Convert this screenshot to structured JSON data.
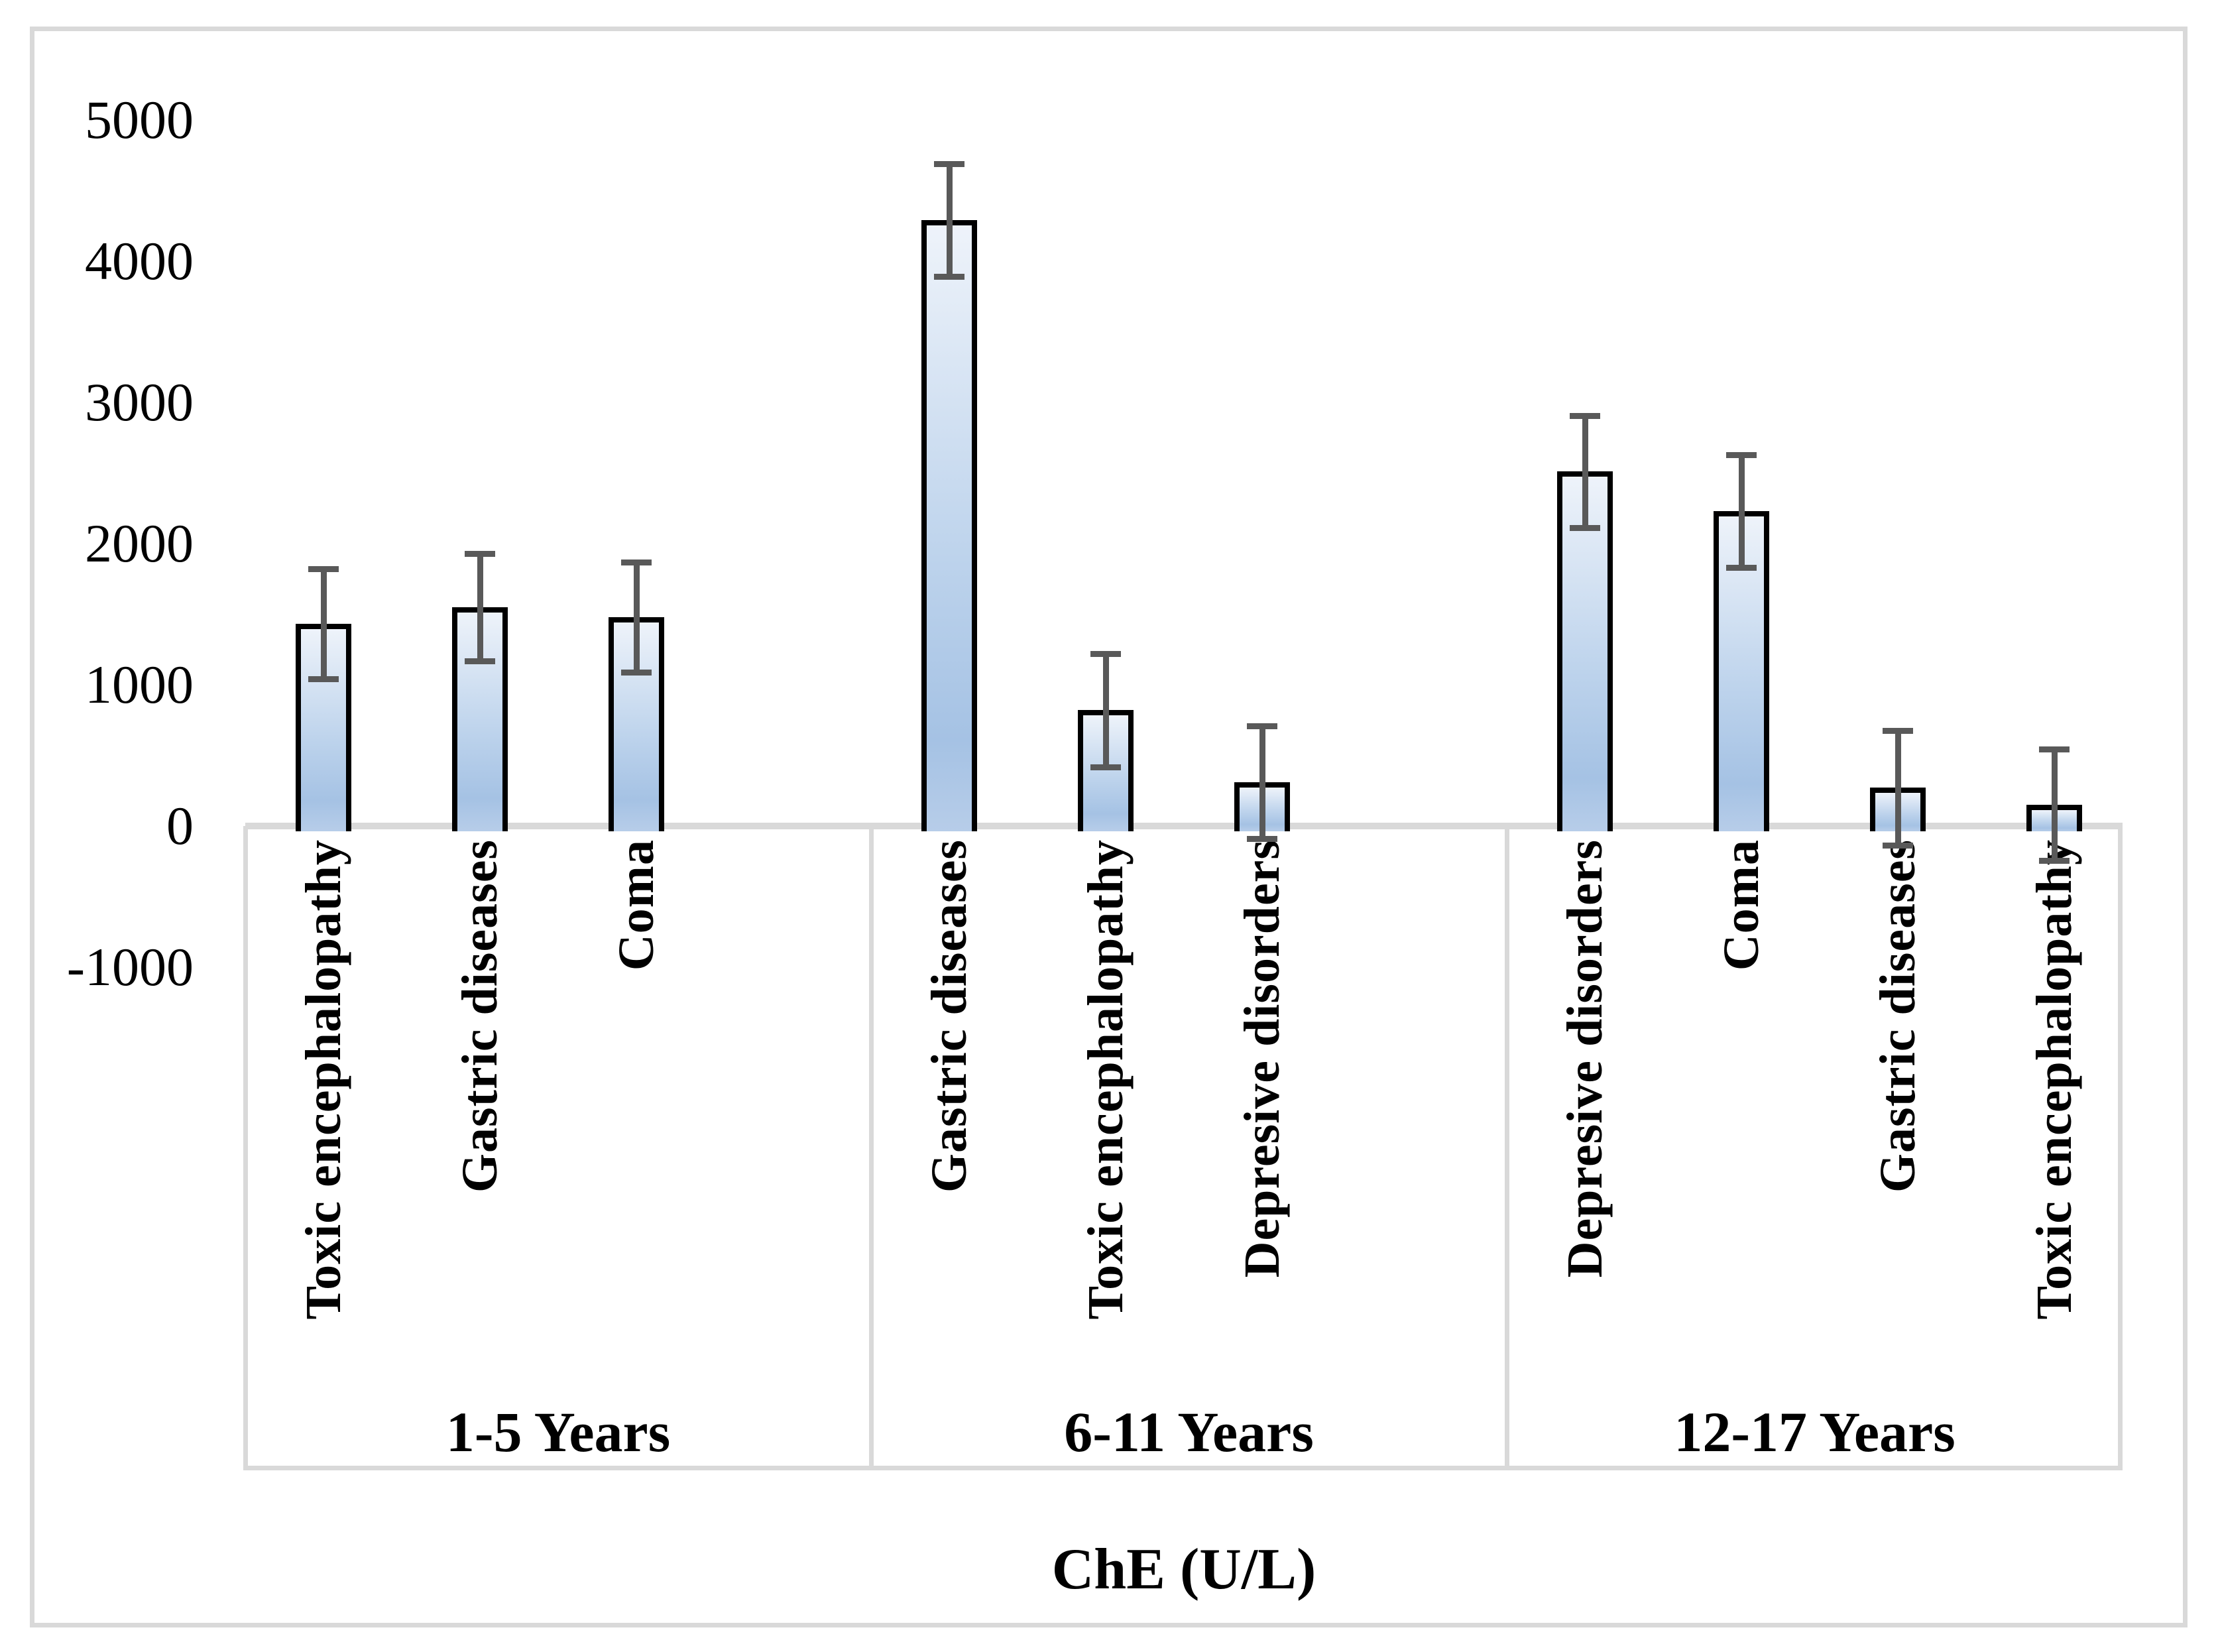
{
  "figure": {
    "border_color": "#d9d9d9",
    "background": "#ffffff"
  },
  "chart_data": {
    "type": "bar",
    "title": "",
    "xlabel": "ChE (U/L)",
    "ylabel": "",
    "ylim": [
      -1000,
      5000
    ],
    "y_ticks": [
      5000,
      4000,
      3000,
      2000,
      1000,
      0,
      -1000
    ],
    "grid": false,
    "legend": "none",
    "error_bars": true,
    "groups": [
      {
        "label": "1-5 Years",
        "bars": [
          {
            "category": "Toxic encephalopathy",
            "value": 1430,
            "error": 390
          },
          {
            "category": "Gastric diseases",
            "value": 1550,
            "error": 380
          },
          {
            "category": "Coma",
            "value": 1480,
            "error": 390
          }
        ]
      },
      {
        "label": "6-11 Years",
        "bars": [
          {
            "category": "Gastric diseases",
            "value": 4290,
            "error": 400
          },
          {
            "category": "Toxic encephalopathy",
            "value": 820,
            "error": 400
          },
          {
            "category": "Depresive disorders",
            "value": 310,
            "error": 400
          }
        ]
      },
      {
        "label": "12-17 Years",
        "bars": [
          {
            "category": "Depresive disorders",
            "value": 2510,
            "error": 395
          },
          {
            "category": "Coma",
            "value": 2230,
            "error": 400
          },
          {
            "category": "Gastric diseases",
            "value": 270,
            "error": 405
          },
          {
            "category": "Toxic encephalopathy",
            "value": 150,
            "error": 395
          }
        ]
      }
    ],
    "colors": {
      "bar_fill_top": "#eef3fa",
      "bar_fill_mid": "#bdd3ec",
      "bar_fill_bottom": "#b7cde9",
      "bar_fill_deep": "#a5c2e4",
      "bar_border": "#000000",
      "error_bar": "#595959",
      "axis_line": "#d9d9d9",
      "text": "#000000"
    }
  }
}
